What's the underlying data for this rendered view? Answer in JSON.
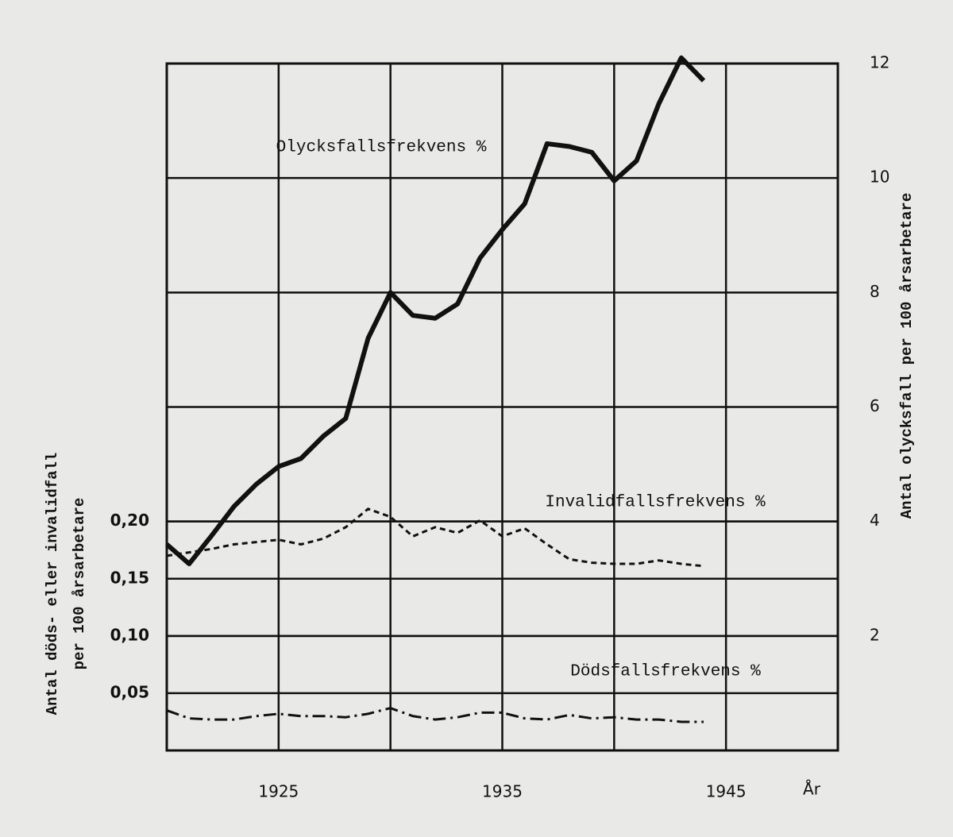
{
  "chart_data": {
    "type": "line",
    "x_label": "År",
    "y_label": [
      "Antal döds- eller invalidfall",
      "per 100 årsarbetare"
    ],
    "y2_label": "Antal olycksfall per 100 årsarbetare",
    "x": [
      1920,
      1921,
      1922,
      1923,
      1924,
      1925,
      1926,
      1927,
      1928,
      1929,
      1930,
      1931,
      1932,
      1933,
      1934,
      1935,
      1936,
      1937,
      1938,
      1939,
      1940,
      1941,
      1942,
      1943,
      1944
    ],
    "xlim": [
      1920,
      1950
    ],
    "xticks": [
      1925,
      1935,
      1945
    ],
    "xminor": [
      1930,
      1940
    ],
    "ylim": [
      0,
      0.6
    ],
    "yticks": [
      {
        "value": 0.05,
        "label": "0,05"
      },
      {
        "value": 0.1,
        "label": "0,10"
      },
      {
        "value": 0.15,
        "label": "0,15"
      },
      {
        "value": 0.2,
        "label": "0,20"
      }
    ],
    "y2lim": [
      0,
      12
    ],
    "y2ticks": [
      2,
      4,
      6,
      8,
      10,
      12
    ],
    "grid": true,
    "series": [
      {
        "name": "Olycksfallsfrekvens %",
        "axis": "y2",
        "color": "#111111",
        "dash": "solid",
        "values": [
          3.6,
          3.26,
          3.75,
          4.26,
          4.65,
          4.96,
          5.1,
          5.49,
          5.8,
          7.2,
          8.0,
          7.6,
          7.55,
          7.8,
          8.6,
          9.1,
          9.55,
          10.6,
          10.55,
          10.45,
          9.95,
          10.3,
          11.3,
          12.1,
          11.7
        ]
      },
      {
        "name": "Invalidfallsfrekvens %",
        "axis": "y",
        "color": "#111111",
        "dash": "dashed",
        "values": [
          0.17,
          0.173,
          0.176,
          0.18,
          0.182,
          0.184,
          0.18,
          0.185,
          0.195,
          0.211,
          0.204,
          0.187,
          0.195,
          0.19,
          0.201,
          0.187,
          0.194,
          0.18,
          0.167,
          0.164,
          0.163,
          0.163,
          0.166,
          0.163,
          0.161
        ]
      },
      {
        "name": "Dödsfallsfrekvens %",
        "axis": "y",
        "color": "#111111",
        "dash": "dashdot",
        "values": [
          0.035,
          0.028,
          0.027,
          0.027,
          0.03,
          0.032,
          0.03,
          0.03,
          0.029,
          0.032,
          0.037,
          0.03,
          0.027,
          0.029,
          0.033,
          0.033,
          0.028,
          0.027,
          0.031,
          0.028,
          0.029,
          0.027,
          0.027,
          0.025,
          0.025
        ]
      }
    ]
  }
}
